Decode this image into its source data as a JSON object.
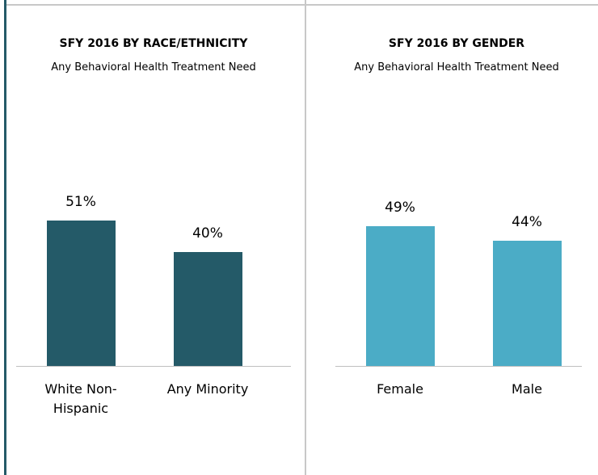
{
  "chart_data": [
    {
      "type": "bar",
      "title": "SFY 2016 BY RACE/ETHNICITY",
      "subtitle": "Any Behavioral Health Treatment Need",
      "categories": [
        "White Non-Hispanic",
        "Any Minority"
      ],
      "values": [
        51,
        40
      ],
      "value_labels": [
        "51%",
        "40%"
      ],
      "color": "#245a68",
      "ylim": [
        0,
        100
      ]
    },
    {
      "type": "bar",
      "title": "SFY 2016 BY GENDER",
      "subtitle": "Any Behavioral Health Treatment Need",
      "categories": [
        "Female",
        "Male"
      ],
      "values": [
        49,
        44
      ],
      "value_labels": [
        "49%",
        "44%"
      ],
      "color": "#4bacc6",
      "ylim": [
        0,
        100
      ]
    }
  ]
}
